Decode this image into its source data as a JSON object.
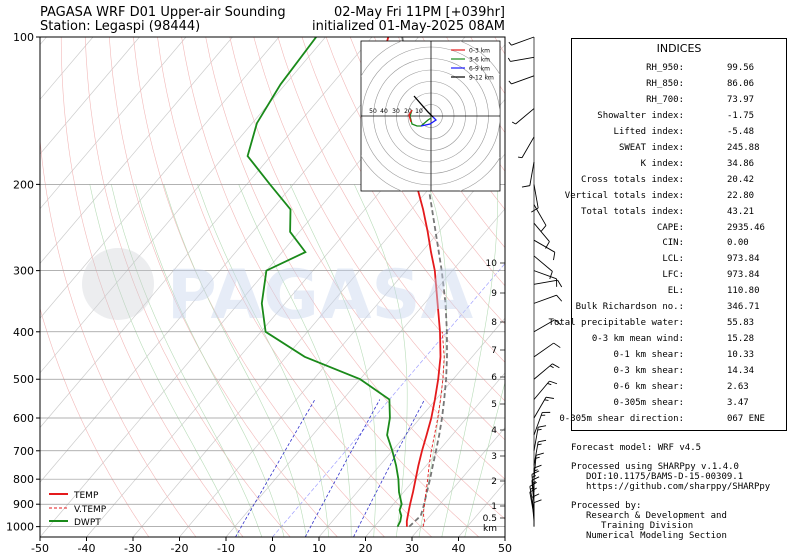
{
  "header": {
    "title_left": "PAGASA WRF D01 Upper-air Sounding",
    "station": "Station: Legaspi (98444)",
    "valid_time": "02-May Fri 11PM [+039hr]",
    "init_time": "initialized 01-May-2025 08AM"
  },
  "watermark": "PAGASA",
  "chart_data": {
    "type": "line",
    "subtype": "skew-T log-P sounding",
    "x_axis": {
      "label": "",
      "range": [
        -50,
        50
      ],
      "ticks": [
        -50,
        -40,
        -30,
        -20,
        -10,
        0,
        10,
        20,
        30,
        40,
        50
      ],
      "unit": "degC"
    },
    "y_axis": {
      "label": "",
      "scale": "log",
      "range_hPa": [
        1050,
        100
      ],
      "ticks": [
        100,
        200,
        300,
        400,
        500,
        600,
        700,
        800,
        900,
        1000
      ]
    },
    "height_axis_km": {
      "ticks": [
        "10",
        "9",
        "8",
        "7",
        "6",
        "5",
        "4",
        "3",
        "2",
        "1",
        "0.5",
        "km"
      ]
    },
    "legend": {
      "position": "bottom-left",
      "entries": [
        "TEMP",
        "V.TEMP",
        "DWPT"
      ]
    },
    "colors": {
      "temp": "#e41a1c",
      "dwpt": "#1a8a1a",
      "vtemp": "#e41a1c",
      "parcel": "#777777",
      "mixing": "#3333cc"
    },
    "series": [
      {
        "name": "TEMP",
        "points": [
          [
            1000,
            27.0
          ],
          [
            975,
            26.0
          ],
          [
            950,
            25.2
          ],
          [
            925,
            24.4
          ],
          [
            900,
            23.6
          ],
          [
            850,
            22.0
          ],
          [
            800,
            20.2
          ],
          [
            750,
            18.3
          ],
          [
            700,
            16.4
          ],
          [
            650,
            14.5
          ],
          [
            600,
            12.4
          ],
          [
            550,
            9.8
          ],
          [
            500,
            6.8
          ],
          [
            450,
            3.2
          ],
          [
            400,
            -1.5
          ],
          [
            350,
            -7.2
          ],
          [
            300,
            -13.8
          ],
          [
            275,
            -18.0
          ],
          [
            250,
            -22.4
          ],
          [
            225,
            -27.5
          ],
          [
            200,
            -33.5
          ],
          [
            175,
            -40.5
          ],
          [
            150,
            -48.5
          ],
          [
            125,
            -58.5
          ],
          [
            110,
            -64.0
          ],
          [
            100,
            -66.5
          ]
        ]
      },
      {
        "name": "V.TEMP",
        "points": [
          [
            1000,
            30.5
          ],
          [
            975,
            29.8
          ],
          [
            950,
            28.6
          ],
          [
            925,
            27.6
          ],
          [
            900,
            26.7
          ],
          [
            850,
            24.8
          ],
          [
            800,
            22.8
          ],
          [
            750,
            20.6
          ],
          [
            700,
            18.4
          ],
          [
            650,
            16.2
          ],
          [
            600,
            13.8
          ],
          [
            550,
            11.0
          ],
          [
            500,
            7.8
          ],
          [
            450,
            4.0
          ],
          [
            400,
            -1.0
          ]
        ]
      },
      {
        "name": "DWPT",
        "points": [
          [
            1000,
            25.0
          ],
          [
            975,
            24.6
          ],
          [
            950,
            23.8
          ],
          [
            925,
            22.4
          ],
          [
            900,
            21.8
          ],
          [
            850,
            19.0
          ],
          [
            800,
            16.5
          ],
          [
            750,
            13.5
          ],
          [
            700,
            10.0
          ],
          [
            650,
            6.0
          ],
          [
            600,
            3.5
          ],
          [
            550,
            0.0
          ],
          [
            500,
            -10.0
          ],
          [
            450,
            -26.0
          ],
          [
            400,
            -39.0
          ],
          [
            350,
            -45.0
          ],
          [
            300,
            -50.0
          ],
          [
            275,
            -45.0
          ],
          [
            250,
            -52.0
          ],
          [
            225,
            -56.0
          ],
          [
            200,
            -65.0
          ],
          [
            175,
            -75.0
          ],
          [
            150,
            -79.0
          ],
          [
            125,
            -81.0
          ],
          [
            100,
            -82.0
          ]
        ]
      },
      {
        "name": "parcel",
        "points": [
          [
            1000,
            27.5
          ],
          [
            950,
            28.0
          ],
          [
            900,
            26.6
          ],
          [
            850,
            25.0
          ],
          [
            800,
            23.3
          ],
          [
            750,
            21.4
          ],
          [
            700,
            19.4
          ],
          [
            650,
            17.2
          ],
          [
            600,
            14.7
          ],
          [
            550,
            11.8
          ],
          [
            500,
            8.5
          ],
          [
            450,
            4.6
          ],
          [
            400,
            0.0
          ],
          [
            350,
            -5.5
          ],
          [
            300,
            -12.3
          ],
          [
            250,
            -20.7
          ],
          [
            200,
            -31.0
          ],
          [
            150,
            -44.5
          ],
          [
            110,
            -59.0
          ],
          [
            100,
            -63.5
          ]
        ]
      }
    ]
  },
  "hodograph": {
    "ring_labels": [
      "50",
      "40",
      "30",
      "20",
      "10"
    ],
    "legend": [
      "0-3 km",
      "3-6 km",
      "6-9 km",
      "9-12 km"
    ],
    "legend_colors": [
      "#e41a1c",
      "#1a8a1a",
      "#1a1aff",
      "#000000"
    ]
  },
  "indices": {
    "title": "INDICES",
    "rows": [
      {
        "label": "RH_950:",
        "value": "99.56"
      },
      {
        "label": "RH_850:",
        "value": "86.06"
      },
      {
        "label": "RH_700:",
        "value": "73.97"
      },
      {
        "label": "Showalter index:",
        "value": "-1.75"
      },
      {
        "label": "Lifted index:",
        "value": "-5.48"
      },
      {
        "label": "SWEAT index:",
        "value": "245.88"
      },
      {
        "label": "K index:",
        "value": "34.86"
      },
      {
        "label": "Cross totals index:",
        "value": "20.42"
      },
      {
        "label": "Vertical totals index:",
        "value": "22.80"
      },
      {
        "label": "Total totals index:",
        "value": "43.21"
      },
      {
        "label": "CAPE:",
        "value": "2935.46"
      },
      {
        "label": "CIN:",
        "value": "0.00"
      },
      {
        "label": "LCL:",
        "value": "973.84"
      },
      {
        "label": "LFC:",
        "value": "973.84"
      },
      {
        "label": "EL:",
        "value": "110.80"
      },
      {
        "label": "Bulk Richardson no.:",
        "value": "346.71"
      },
      {
        "label": "Total precipitable water:",
        "value": "55.83"
      },
      {
        "label": "0-3 km mean wind:",
        "value": "15.28"
      },
      {
        "label": "0-1 km shear:",
        "value": "10.33"
      },
      {
        "label": "0-3 km shear:",
        "value": "14.34"
      },
      {
        "label": "0-6 km shear:",
        "value": "2.63"
      },
      {
        "label": "0-305m shear:",
        "value": "3.47"
      },
      {
        "label": "0-305m shear direction:",
        "value": "067 ENE"
      }
    ]
  },
  "info": {
    "forecast_model": "Forecast model: WRF v4.5",
    "processed_using": "Processed using SHARPpy v.1.4.0",
    "doi": "DOI:10.1175/BAMS-D-15-00309.1",
    "url": "https://github.com/sharppy/SHARPpy",
    "processed_by": "Processed by:",
    "org1": "Research & Development and",
    "org2": "Training Division",
    "org3": "Numerical Modeling Section"
  }
}
